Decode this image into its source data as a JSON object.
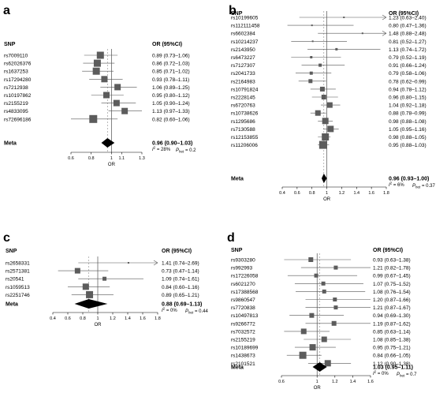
{
  "chart_data": [
    {
      "type": "forest",
      "panel_label": "a",
      "header_snp": "SNP",
      "header_or": "OR (95%CI)",
      "rows": [
        {
          "snp": "rs7009110",
          "or": 0.89,
          "lo": 0.73,
          "hi": 1.06,
          "label": "0.89 (0.73–1.06)",
          "weight": 9
        },
        {
          "snp": "rs62026376",
          "or": 0.86,
          "lo": 0.72,
          "hi": 1.03,
          "label": "0.86 (0.72–1.03)",
          "weight": 9
        },
        {
          "snp": "rs1637253",
          "or": 0.85,
          "lo": 0.71,
          "hi": 1.02,
          "label": "0.85 (0.71–1.02)",
          "weight": 9
        },
        {
          "snp": "rs17294280",
          "or": 0.93,
          "lo": 0.78,
          "hi": 1.11,
          "label": "0.93 (0.78–1.11)",
          "weight": 8
        },
        {
          "snp": "rs7212938",
          "or": 1.06,
          "lo": 0.89,
          "hi": 1.25,
          "label": "1.06 (0.89–1.25)",
          "weight": 8
        },
        {
          "snp": "rs10197862",
          "or": 0.95,
          "lo": 0.8,
          "hi": 1.12,
          "label": "0.95 (0.80–1.12)",
          "weight": 8
        },
        {
          "snp": "rs2155219",
          "or": 1.05,
          "lo": 0.9,
          "hi": 1.24,
          "label": "1.05 (0.90–1.24)",
          "weight": 8
        },
        {
          "snp": "rs4833095",
          "or": 1.13,
          "lo": 0.97,
          "hi": 1.33,
          "label": "1.13 (0.97–1.33)",
          "weight": 8
        },
        {
          "snp": "rs72696186",
          "or": 0.82,
          "lo": 0.6,
          "hi": 1.06,
          "label": "0.82 (0.60–1.06)",
          "weight": 10
        }
      ],
      "meta": {
        "label": "Meta",
        "or": 0.96,
        "lo": 0.9,
        "hi": 1.03,
        "text": "0.96 (0.90–1.03)",
        "i2_text": "= 28%",
        "p_text": "= 0.2"
      },
      "xticks": [
        0.6,
        0.8,
        1,
        1.1,
        1.3
      ],
      "xtick_labels": [
        "0.6",
        "0.8",
        "1",
        "1.1",
        "1.3"
      ],
      "xlabel": "OR",
      "xlim": [
        0.6,
        1.3
      ]
    },
    {
      "type": "forest",
      "panel_label": "b",
      "header_snp": "SNP",
      "header_or": "OR (95%CI)",
      "rows": [
        {
          "snp": "rs10199605",
          "or": 1.23,
          "lo": 0.63,
          "hi": 2.4,
          "label": "1.23 (0.63–2.40)",
          "weight": 2,
          "arrow": true
        },
        {
          "snp": "rs112111458",
          "or": 0.8,
          "lo": 0.47,
          "hi": 1.36,
          "label": "0.80 (0.47–1.36)",
          "weight": 2
        },
        {
          "snp": "rs6602384",
          "or": 1.48,
          "lo": 0.88,
          "hi": 2.48,
          "label": "1.48 (0.88–2.48)",
          "weight": 2,
          "arrow": true
        },
        {
          "snp": "rs10214237",
          "or": 0.81,
          "lo": 0.52,
          "hi": 1.27,
          "label": "0.81 (0.52–1.27)",
          "weight": 2
        },
        {
          "snp": "rs2143950",
          "or": 1.13,
          "lo": 0.74,
          "hi": 1.72,
          "label": "1.13 (0.74–1.72)",
          "weight": 3
        },
        {
          "snp": "rs6473227",
          "or": 0.79,
          "lo": 0.52,
          "hi": 1.19,
          "label": "0.79 (0.52–1.19)",
          "weight": 3
        },
        {
          "snp": "rs7127307",
          "or": 0.91,
          "lo": 0.66,
          "hi": 1.24,
          "label": "0.91 (0.66–1.24)",
          "weight": 4
        },
        {
          "snp": "rs2041733",
          "or": 0.79,
          "lo": 0.58,
          "hi": 1.06,
          "label": "0.79 (0.58–1.06)",
          "weight": 4
        },
        {
          "snp": "rs2164983",
          "or": 0.78,
          "lo": 0.62,
          "hi": 0.99,
          "label": "0.78 (0.62–0.99)",
          "weight": 5
        },
        {
          "snp": "rs10791824",
          "or": 0.94,
          "lo": 0.78,
          "hi": 1.12,
          "label": "0.94 (0.78–1.12)",
          "weight": 6
        },
        {
          "snp": "rs2228145",
          "or": 0.96,
          "lo": 0.8,
          "hi": 1.15,
          "label": "0.96 (0.80–1.15)",
          "weight": 6
        },
        {
          "snp": "rs6720763",
          "or": 1.04,
          "lo": 0.92,
          "hi": 1.18,
          "label": "1.04 (0.92–1.18)",
          "weight": 7
        },
        {
          "snp": "rs10738626",
          "or": 0.88,
          "lo": 0.78,
          "hi": 0.99,
          "label": "0.88 (0.78–0.99)",
          "weight": 7
        },
        {
          "snp": "rs1295686",
          "or": 0.98,
          "lo": 0.88,
          "hi": 1.08,
          "label": "0.98 (0.88–1.08)",
          "weight": 8
        },
        {
          "snp": "rs7130588",
          "or": 1.05,
          "lo": 0.95,
          "hi": 1.16,
          "label": "1.05 (0.95–1.16)",
          "weight": 8
        },
        {
          "snp": "rs12153855",
          "or": 0.98,
          "lo": 0.88,
          "hi": 1.05,
          "label": "0.98 (0.88–1.05)",
          "weight": 9
        },
        {
          "snp": "rs11206006",
          "or": 0.95,
          "lo": 0.88,
          "hi": 1.03,
          "label": "0.95 (0.88–1.03)",
          "weight": 10
        }
      ],
      "meta": {
        "label": "Meta",
        "or": 0.96,
        "lo": 0.93,
        "hi": 1.0,
        "text": "0.96 (0.93–1.00)",
        "i2_text": "= 6%",
        "p_text": "= 0.37"
      },
      "xticks": [
        0.4,
        0.6,
        0.8,
        1,
        1.2,
        1.4,
        1.6,
        1.8
      ],
      "xtick_labels": [
        "0.4",
        "0.6",
        "0.8",
        "1",
        "1.2",
        "1.4",
        "1.6",
        "1.8"
      ],
      "xlabel": "OR",
      "xlim": [
        0.4,
        1.8
      ]
    },
    {
      "type": "forest",
      "panel_label": "c",
      "header_snp": "SNP",
      "header_or": "OR (95%CI)",
      "rows": [
        {
          "snp": "rs2658331",
          "or": 1.41,
          "lo": 0.74,
          "hi": 2.69,
          "label": "1.41 (0.74–2.69)",
          "weight": 2,
          "arrow": true
        },
        {
          "snp": "rs2571381",
          "or": 0.73,
          "lo": 0.47,
          "hi": 1.14,
          "label": "0.73 (0.47–1.14)",
          "weight": 7
        },
        {
          "snp": "rs20541",
          "or": 1.09,
          "lo": 0.74,
          "hi": 1.61,
          "label": "1.09 (0.74–1.61)",
          "weight": 5
        },
        {
          "snp": "rs1059513",
          "or": 0.84,
          "lo": 0.6,
          "hi": 1.16,
          "label": "0.84 (0.60–1.16)",
          "weight": 8
        },
        {
          "snp": "rs2251746",
          "or": 0.89,
          "lo": 0.65,
          "hi": 1.21,
          "label": "0.89 (0.65–1.21)",
          "weight": 9
        }
      ],
      "meta": {
        "label": "Meta",
        "or": 0.88,
        "lo": 0.69,
        "hi": 1.13,
        "text": "0.88 (0.69–1.13)",
        "i2_text": "= 0%",
        "p_text": "= 0.44"
      },
      "xticks": [
        0.4,
        0.6,
        0.8,
        1,
        1.2,
        1.4,
        1.6,
        1.8
      ],
      "xtick_labels": [
        "0.4",
        "0.6",
        "0.8",
        "1",
        "1.2",
        "1.4",
        "1.6",
        "1.8"
      ],
      "xlabel": "OR",
      "xlim": [
        0.4,
        1.8
      ]
    },
    {
      "type": "forest",
      "panel_label": "d",
      "header_snp": "SNP",
      "header_or": "OR (95%CI)",
      "rows": [
        {
          "snp": "rs9303280",
          "or": 0.93,
          "lo": 0.63,
          "hi": 1.38,
          "label": "0.93 (0.63–1.38)",
          "weight": 6
        },
        {
          "snp": "rs992993",
          "or": 1.21,
          "lo": 0.82,
          "hi": 1.78,
          "label": "1.21 (0.82–1.78)",
          "weight": 5
        },
        {
          "snp": "rs17226058",
          "or": 0.99,
          "lo": 0.67,
          "hi": 1.45,
          "label": "0.99 (0.67–1.45)",
          "weight": 5
        },
        {
          "snp": "rs6021270",
          "or": 1.07,
          "lo": 0.75,
          "hi": 1.52,
          "label": "1.07 (0.75–1.52)",
          "weight": 5
        },
        {
          "snp": "rs17388568",
          "or": 1.08,
          "lo": 0.76,
          "hi": 1.54,
          "label": "1.08 (0.76–1.54)",
          "weight": 5
        },
        {
          "snp": "rs9860547",
          "or": 1.2,
          "lo": 0.87,
          "hi": 1.66,
          "label": "1.20 (0.87–1.66)",
          "weight": 5
        },
        {
          "snp": "rs7720838",
          "or": 1.21,
          "lo": 0.87,
          "hi": 1.67,
          "label": "1.21 (0.87–1.67)",
          "weight": 5
        },
        {
          "snp": "rs10497813",
          "or": 0.94,
          "lo": 0.69,
          "hi": 1.3,
          "label": "0.94 (0.69–1.30)",
          "weight": 6
        },
        {
          "snp": "rs9266772",
          "or": 1.19,
          "lo": 0.87,
          "hi": 1.62,
          "label": "1.19 (0.87–1.62)",
          "weight": 6
        },
        {
          "snp": "rs7032572",
          "or": 0.85,
          "lo": 0.63,
          "hi": 1.14,
          "label": "0.85 (0.63–1.14)",
          "weight": 7
        },
        {
          "snp": "rs2155219",
          "or": 1.08,
          "lo": 0.85,
          "hi": 1.38,
          "label": "1.08 (0.85–1.38)",
          "weight": 7
        },
        {
          "snp": "rs10189699",
          "or": 0.95,
          "lo": 0.75,
          "hi": 1.21,
          "label": "0.95 (0.75–1.21)",
          "weight": 8
        },
        {
          "snp": "rs1438673",
          "or": 0.84,
          "lo": 0.66,
          "hi": 1.05,
          "label": "0.84 (0.66–1.05)",
          "weight": 9
        },
        {
          "snp": "rs2101521",
          "or": 1.12,
          "lo": 0.9,
          "hi": 1.38,
          "label": "1.12 (0.90–1.38)",
          "weight": 8
        }
      ],
      "meta": {
        "label": "Meta",
        "or": 1.03,
        "lo": 0.95,
        "hi": 1.11,
        "text": "1.03 (0.95–1.11)",
        "i2_text": "= 0%",
        "p_text": "= 0.7"
      },
      "xticks": [
        0.6,
        1,
        1.2,
        1.4,
        1.6
      ],
      "xtick_labels": [
        "0.6",
        "1",
        "1.2",
        "1.4",
        "1.6"
      ],
      "xlabel": "OR",
      "xlim": [
        0.6,
        1.6
      ]
    }
  ]
}
